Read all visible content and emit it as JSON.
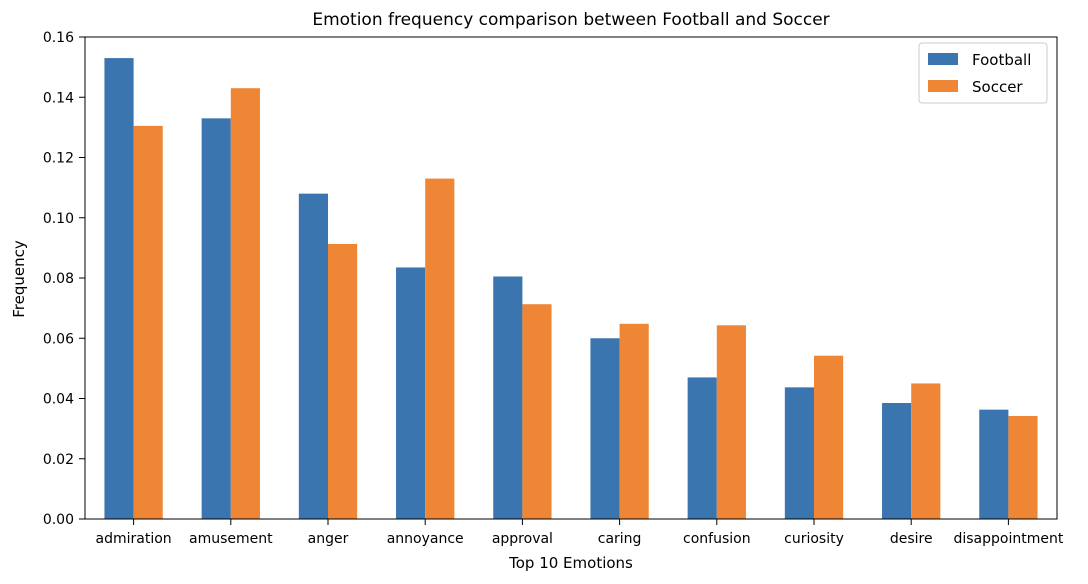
{
  "chart_data": {
    "type": "bar",
    "title": "Emotion frequency comparison between Football and Soccer",
    "xlabel": "Top 10 Emotions",
    "ylabel": "Frequency",
    "categories": [
      "admiration",
      "amusement",
      "anger",
      "annoyance",
      "approval",
      "caring",
      "confusion",
      "curiosity",
      "desire",
      "disappointment"
    ],
    "series": [
      {
        "name": "Football",
        "color": "#3a75af",
        "values": [
          0.153,
          0.133,
          0.108,
          0.0835,
          0.0805,
          0.06,
          0.047,
          0.0437,
          0.0385,
          0.0363
        ]
      },
      {
        "name": "Soccer",
        "color": "#ef8636",
        "values": [
          0.1305,
          0.143,
          0.0913,
          0.113,
          0.0713,
          0.0648,
          0.0643,
          0.0542,
          0.045,
          0.0342
        ]
      }
    ],
    "ylim": [
      0,
      0.16
    ],
    "yticks": [
      "0.00",
      "0.02",
      "0.04",
      "0.06",
      "0.08",
      "0.10",
      "0.12",
      "0.14",
      "0.16"
    ],
    "legend_position": "top-right",
    "grid": false
  }
}
